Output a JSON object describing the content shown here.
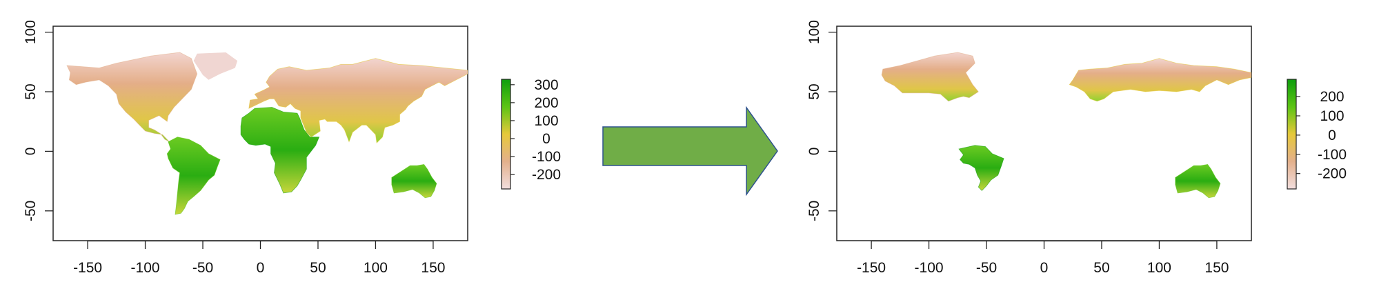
{
  "chart_data": [
    {
      "type": "heatmap",
      "title": "",
      "xlabel": "",
      "ylabel": "",
      "xlim": [
        -180,
        180
      ],
      "ylim": [
        -75,
        105
      ],
      "x_ticks": [
        -150,
        -100,
        -50,
        0,
        50,
        100,
        150
      ],
      "y_ticks": [
        -50,
        0,
        50,
        100
      ],
      "grid": false,
      "legend": {
        "placement": "right",
        "labels": [
          300,
          200,
          100,
          0,
          -100,
          -200
        ],
        "range": [
          -280,
          330
        ],
        "colors": [
          "#f2dede",
          "#e3b08c",
          "#e6c93a",
          "#5cc414",
          "#0d9e0d"
        ]
      },
      "regions": [
        {
          "name": "North America",
          "value": -60
        },
        {
          "name": "South America",
          "value": 220
        },
        {
          "name": "Africa",
          "value": 260
        },
        {
          "name": "Eurasia",
          "value": -40
        },
        {
          "name": "Australia",
          "value": 210
        }
      ]
    },
    {
      "type": "heatmap",
      "title": "",
      "xlabel": "",
      "ylabel": "",
      "xlim": [
        -180,
        180
      ],
      "ylim": [
        -75,
        105
      ],
      "x_ticks": [
        -150,
        -100,
        -50,
        0,
        50,
        100,
        150
      ],
      "y_ticks": [
        -50,
        0,
        50,
        100
      ],
      "grid": false,
      "legend": {
        "placement": "right",
        "labels": [
          200,
          100,
          0,
          -100,
          -200
        ],
        "range": [
          -280,
          290
        ],
        "colors": [
          "#f2dede",
          "#e3b08c",
          "#e6c93a",
          "#5cc414",
          "#0d9e0d"
        ]
      },
      "regions": [
        {
          "name": "Canada",
          "value": -80
        },
        {
          "name": "Northern Eurasia",
          "value": -60
        },
        {
          "name": "Brazil",
          "value": 230
        },
        {
          "name": "Australia",
          "value": 200
        }
      ]
    }
  ],
  "arrow": {
    "color": "#70ad47",
    "border": "#2f528f"
  }
}
